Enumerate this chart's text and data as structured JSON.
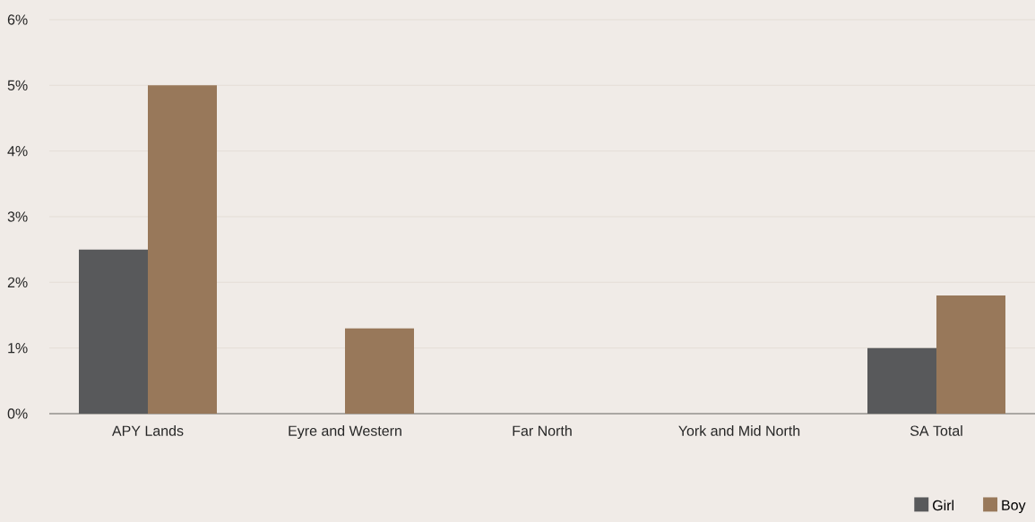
{
  "chart_data": {
    "type": "bar",
    "categories": [
      "APY Lands",
      "Eyre and Western",
      "Far North",
      "York and Mid North",
      "SA Total"
    ],
    "series": [
      {
        "name": "Girl",
        "color": "#58595b",
        "values": [
          2.5,
          0,
          0,
          0,
          1.0
        ]
      },
      {
        "name": "Boy",
        "color": "#98785a",
        "values": [
          5.0,
          1.3,
          0,
          0,
          1.8
        ]
      }
    ],
    "ylim": [
      0,
      6
    ],
    "yticks": [
      {
        "value": 0,
        "label": "0%"
      },
      {
        "value": 1,
        "label": "1%"
      },
      {
        "value": 2,
        "label": "2%"
      },
      {
        "value": 3,
        "label": "3%"
      },
      {
        "value": 4,
        "label": "4%"
      },
      {
        "value": 5,
        "label": "5%"
      },
      {
        "value": 6,
        "label": "6%"
      }
    ],
    "grid": "y",
    "legend": "bottom right"
  }
}
